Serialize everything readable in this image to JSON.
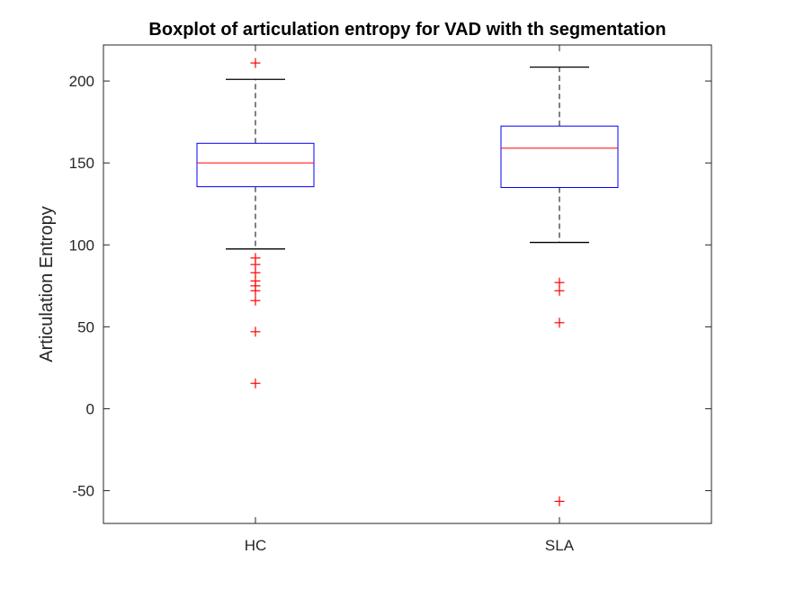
{
  "chart_data": {
    "type": "boxplot",
    "title": "Boxplot of articulation entropy for VAD with th segmentation",
    "xlabel": "",
    "ylabel": "Articulation Entropy",
    "ylim": [
      -70,
      222
    ],
    "yticks": [
      -50,
      0,
      50,
      100,
      150,
      200
    ],
    "ytick_labels": [
      "-50",
      "0",
      "50",
      "100",
      "150",
      "200"
    ],
    "grid": false,
    "colors": {
      "box": "#0000ff",
      "median": "#ff0000",
      "whisker": "#000000",
      "outlier": "#ff0000",
      "axes": "#262626"
    },
    "categories": [
      "HC",
      "SLA"
    ],
    "boxes": [
      {
        "category": "HC",
        "whisker_low": 97.5,
        "q1": 135.5,
        "median": 150,
        "q3": 162,
        "whisker_high": 201,
        "outliers": [
          211,
          92,
          88,
          83,
          78,
          75,
          72,
          66,
          47,
          15.5
        ]
      },
      {
        "category": "SLA",
        "whisker_low": 101.5,
        "q1": 135,
        "median": 159,
        "q3": 172.5,
        "whisker_high": 208.5,
        "outliers": [
          77,
          72,
          52.5,
          -56.5
        ]
      }
    ]
  }
}
